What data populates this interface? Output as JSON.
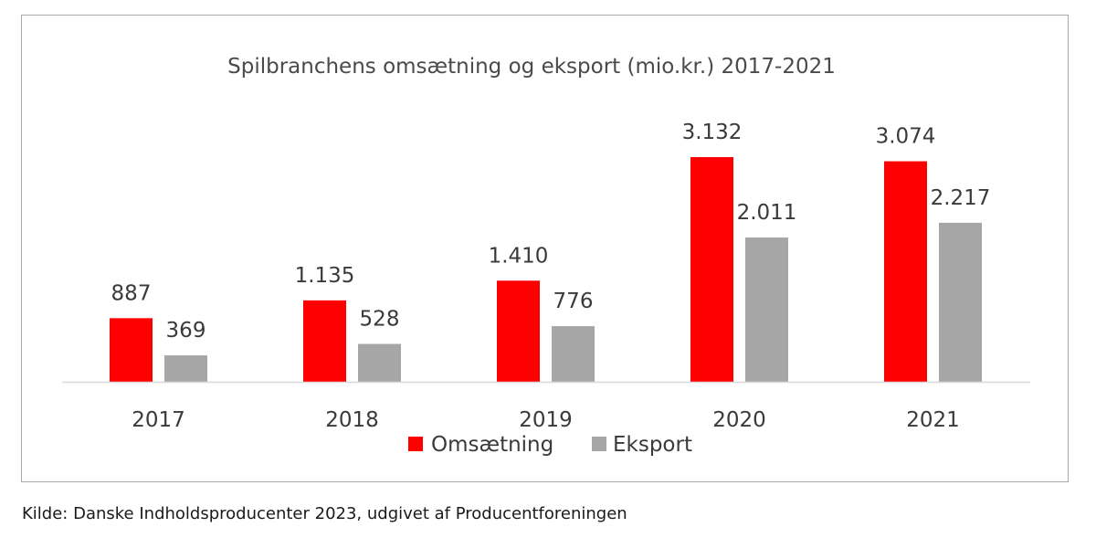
{
  "chart_data": {
    "type": "bar",
    "title": "Spilbranchens omsætning og eksport (mio.kr.) 2017-2021",
    "xlabel": "",
    "ylabel": "",
    "categories": [
      "2017",
      "2018",
      "2019",
      "2020",
      "2021"
    ],
    "series": [
      {
        "name": "Omsætning",
        "color": "#ff0000",
        "values": [
          887,
          1135,
          1410,
          3132,
          3074
        ],
        "labels": [
          "887",
          "1.135",
          "1.410",
          "3.132",
          "3.074"
        ]
      },
      {
        "name": "Eksport",
        "color": "#a6a6a6",
        "values": [
          369,
          528,
          776,
          2011,
          2217
        ],
        "labels": [
          "369",
          "528",
          "776",
          "2.011",
          "2.217"
        ]
      }
    ],
    "ylim": [
      0,
      3200
    ],
    "grid": false,
    "legend_position": "bottom"
  },
  "source": "Kilde: Danske Indholdsproducenter 2023, udgivet af Producentforeningen"
}
